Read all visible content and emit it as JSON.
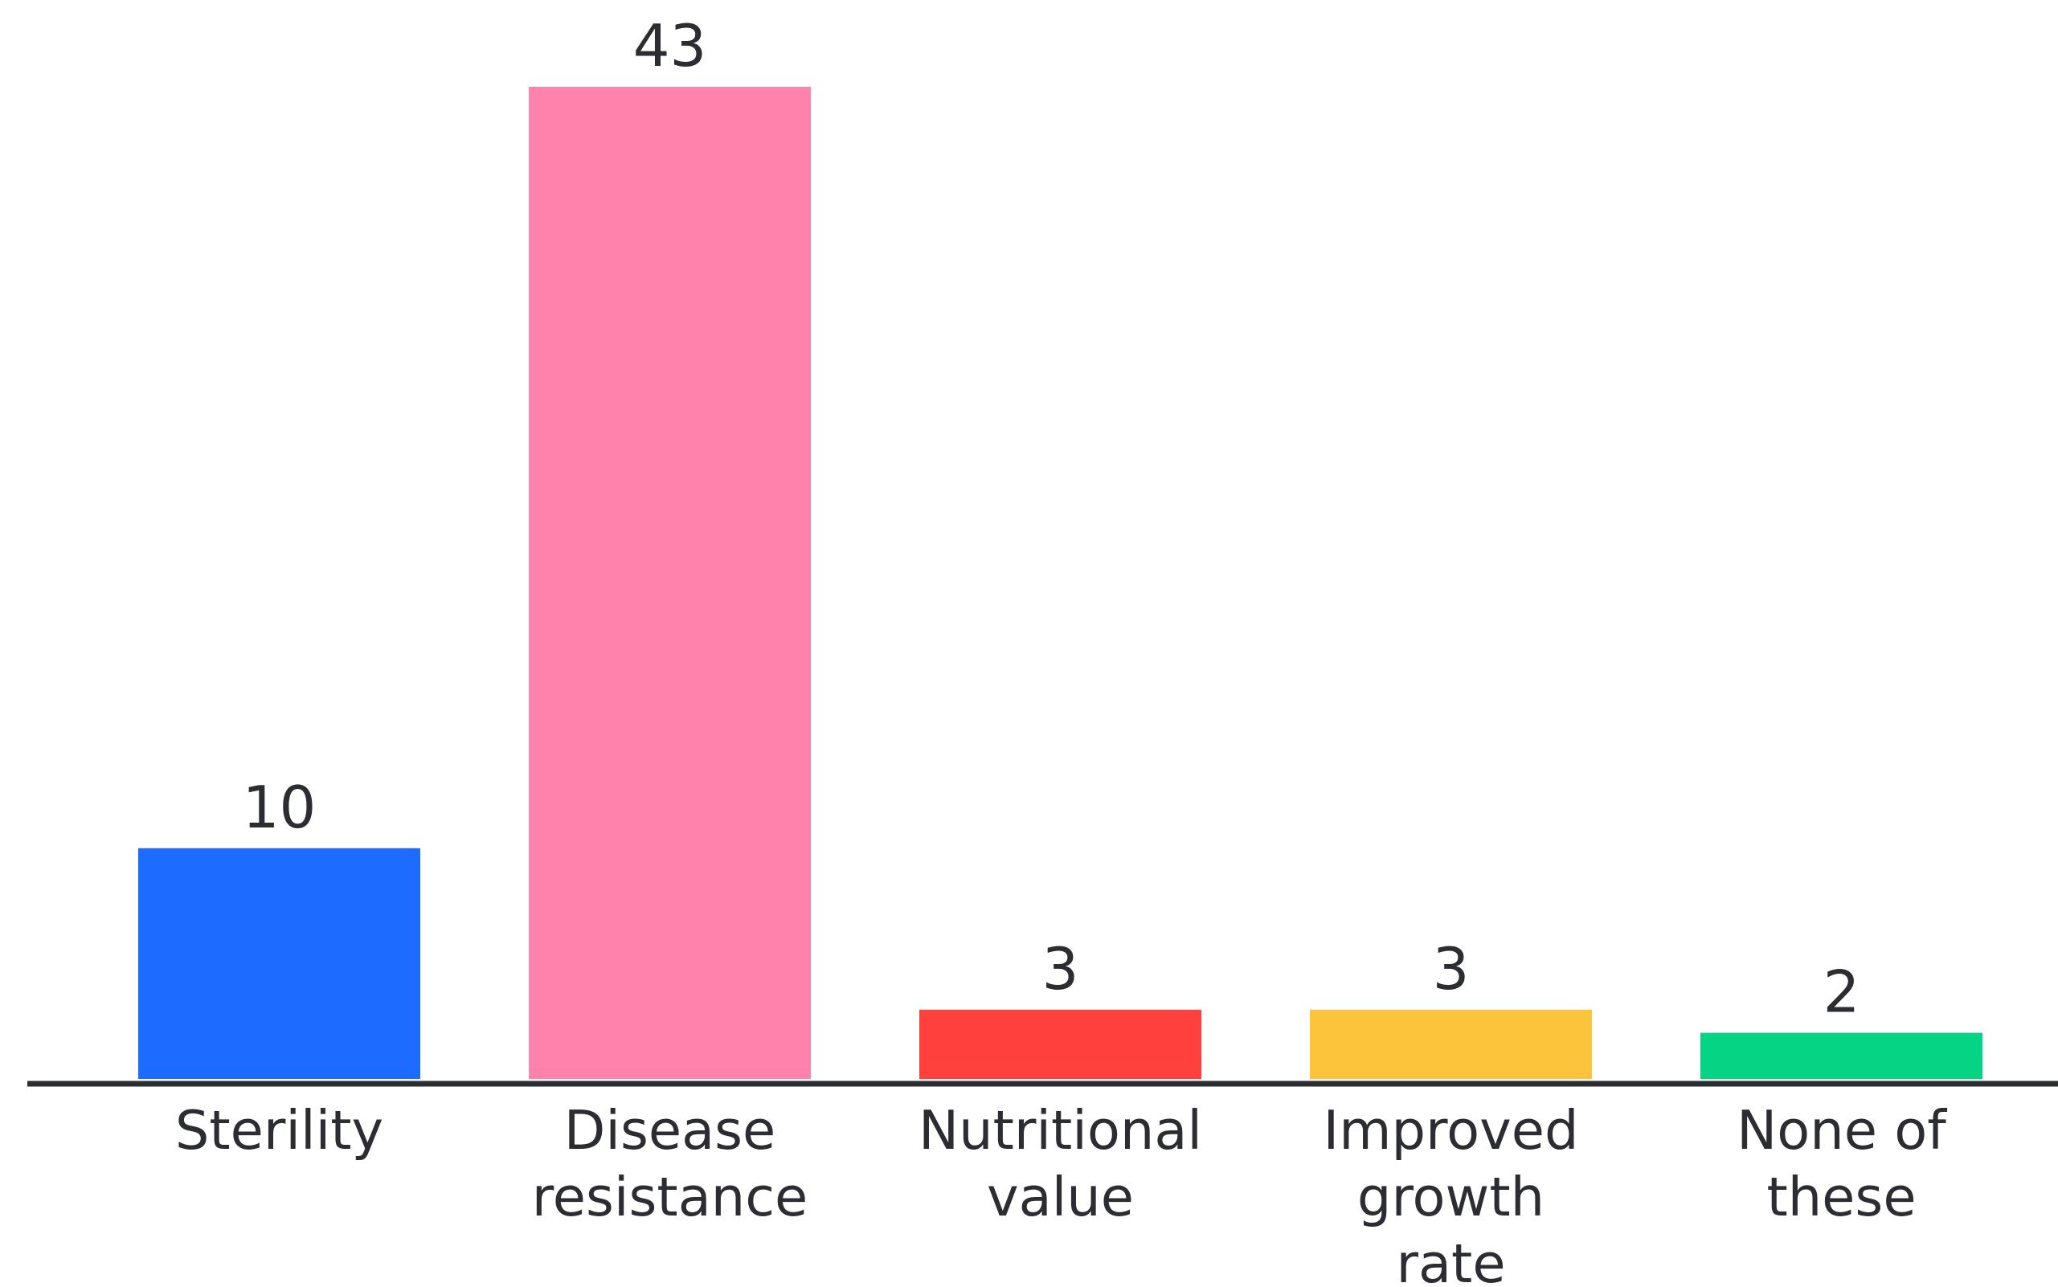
{
  "chart_data": {
    "type": "bar",
    "title": "",
    "xlabel": "",
    "ylabel": "",
    "categories": [
      [
        "Sterility"
      ],
      [
        "Disease",
        "resistance"
      ],
      [
        "Nutritional",
        "value"
      ],
      [
        "Improved",
        "growth",
        "rate"
      ],
      [
        "None of",
        "these"
      ]
    ],
    "values": [
      10,
      43,
      3,
      3,
      2
    ],
    "colors": [
      "#1e6bff",
      "#ff82ac",
      "#ff403d",
      "#fcc43b",
      "#05d484"
    ],
    "ylim": [
      0,
      43
    ],
    "grid": false,
    "legend": "none",
    "axis_color": "#2b2d33"
  }
}
